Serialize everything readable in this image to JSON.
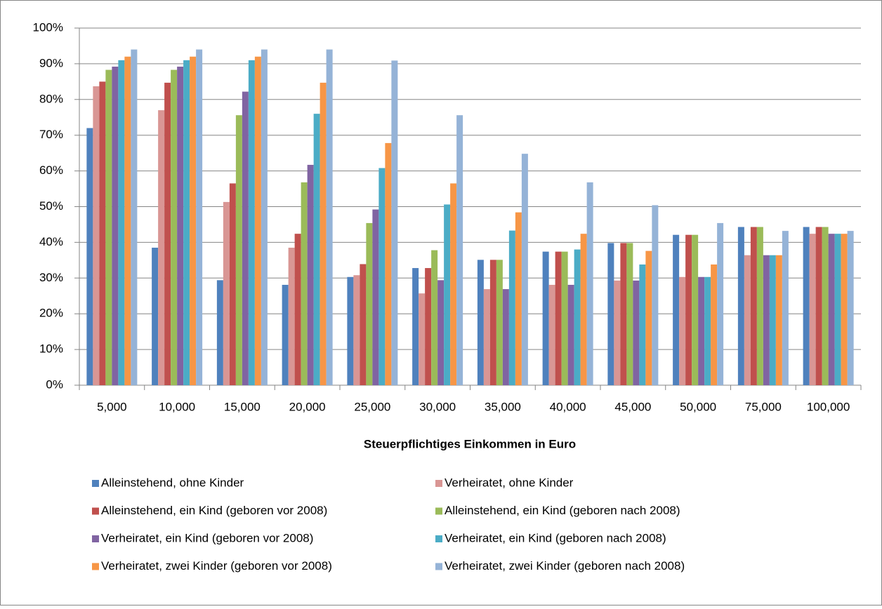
{
  "chart_data": {
    "type": "bar",
    "xlabel": "Steuerpflichtiges Einkommen in Euro",
    "categories": [
      "5,000",
      "10,000",
      "15,000",
      "20,000",
      "25,000",
      "30,000",
      "35,000",
      "40,000",
      "45,000",
      "50,000",
      "75,000",
      "100,000"
    ],
    "series": [
      {
        "name": "Alleinstehend, ohne Kinder",
        "color": "#4f81bd",
        "values": [
          72,
          38.5,
          29.4,
          28.1,
          30.3,
          32.8,
          35.1,
          37.4,
          39.8,
          42.1,
          44.3,
          44.3
        ]
      },
      {
        "name": "Verheiratet, ohne Kinder",
        "color": "#d99694",
        "values": [
          83.7,
          77,
          51.3,
          38.5,
          30.8,
          25.7,
          26.9,
          28.1,
          29.3,
          30.3,
          36.4,
          42.4
        ]
      },
      {
        "name": "Alleinstehend, ein Kind (geboren vor 2008)",
        "color": "#c0504d",
        "values": [
          85,
          84.7,
          56.5,
          42.4,
          33.9,
          32.8,
          35.1,
          37.4,
          39.8,
          42.1,
          44.3,
          44.3
        ]
      },
      {
        "name": "Alleinstehend, ein Kind (geboren nach 2008)",
        "color": "#9bbb59",
        "values": [
          88.3,
          88.3,
          75.6,
          56.8,
          45.4,
          37.8,
          35.1,
          37.4,
          39.8,
          42.1,
          44.3,
          44.3
        ]
      },
      {
        "name": "Verheiratet, ein Kind (geboren vor 2008)",
        "color": "#8064a2",
        "values": [
          89.2,
          89.2,
          82.2,
          61.7,
          49.2,
          29.4,
          26.9,
          28.1,
          29.3,
          30.3,
          36.4,
          42.4
        ]
      },
      {
        "name": "Verheiratet, ein Kind (geboren nach 2008)",
        "color": "#4bacc6",
        "values": [
          91,
          91,
          91,
          76,
          60.8,
          50.6,
          43.3,
          38,
          33.8,
          30.3,
          36.4,
          42.4
        ]
      },
      {
        "name": "Verheiratet, zwei Kinder (geboren vor 2008)",
        "color": "#f79646",
        "values": [
          92,
          92,
          92,
          84.7,
          67.8,
          56.5,
          48.4,
          42.4,
          37.6,
          33.8,
          36.4,
          42.4
        ]
      },
      {
        "name": "Verheiratet, zwei Kinder (geboren nach 2008)",
        "color": "#95b3d7",
        "values": [
          94,
          94,
          94,
          94,
          90.9,
          75.6,
          64.8,
          56.8,
          50.4,
          45.4,
          43.2,
          43.2
        ]
      }
    ],
    "ylim": [
      0,
      100
    ],
    "yticks": [
      {
        "value": 0,
        "label": "0%"
      },
      {
        "value": 10,
        "label": "10%"
      },
      {
        "value": 20,
        "label": "20%"
      },
      {
        "value": 30,
        "label": "30%"
      },
      {
        "value": 40,
        "label": "40%"
      },
      {
        "value": 50,
        "label": "50%"
      },
      {
        "value": 60,
        "label": "60%"
      },
      {
        "value": 70,
        "label": "70%"
      },
      {
        "value": 80,
        "label": "80%"
      },
      {
        "value": 90,
        "label": "90%"
      },
      {
        "value": 100,
        "label": "100%"
      }
    ],
    "grid": true
  }
}
